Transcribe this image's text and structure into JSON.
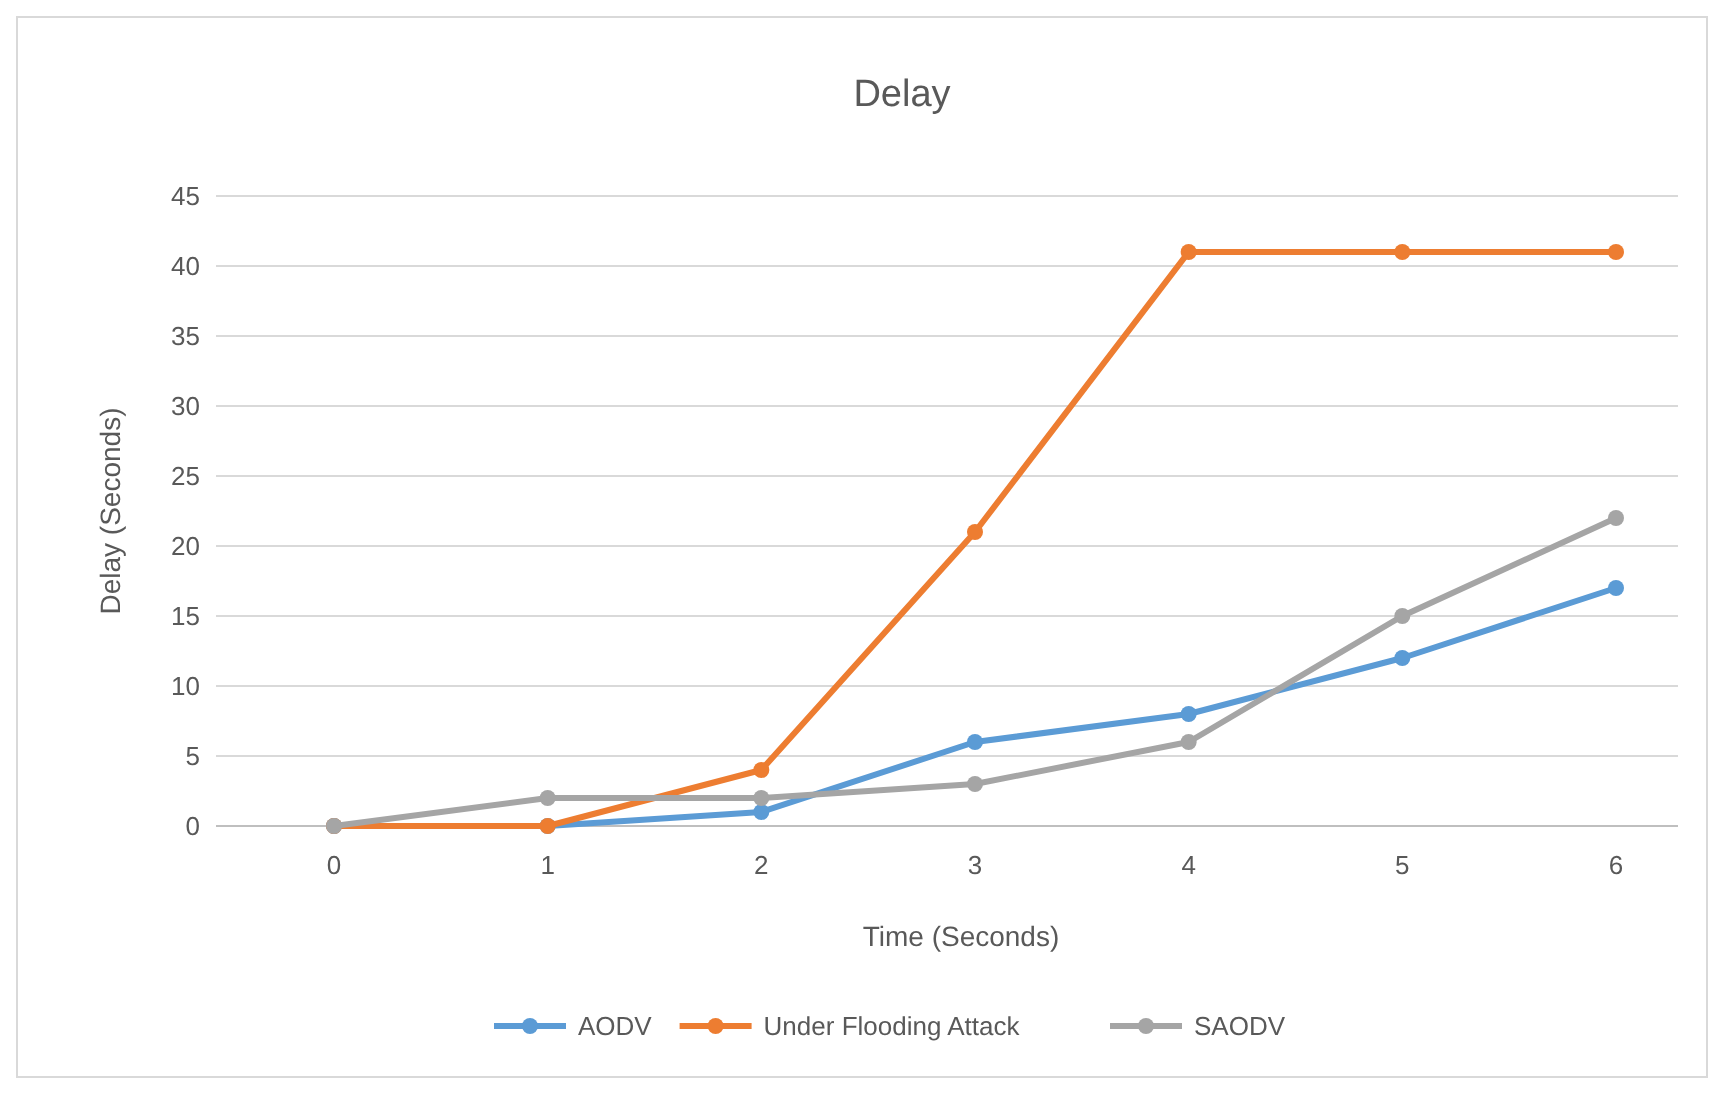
{
  "chart_data": {
    "type": "line",
    "title": "Delay",
    "xlabel": "Time (Seconds)",
    "ylabel": "Delay (Seconds)",
    "categories": [
      "0",
      "1",
      "2",
      "3",
      "4",
      "5",
      "6"
    ],
    "series": [
      {
        "name": "AODV",
        "color": "#5b9bd5",
        "values": [
          0,
          0,
          1,
          6,
          8,
          12,
          17
        ]
      },
      {
        "name": "Under Flooding Attack",
        "color": "#ed7d31",
        "values": [
          0,
          0,
          4,
          21,
          41,
          41,
          41
        ]
      },
      {
        "name": "SAODV",
        "color": "#a5a5a5",
        "values": [
          0,
          2,
          2,
          3,
          6,
          15,
          22
        ]
      }
    ],
    "ylim": [
      0,
      45
    ],
    "yticks": [
      0,
      5,
      10,
      15,
      20,
      25,
      30,
      35,
      40,
      45
    ],
    "grid": "y",
    "legend": "bottom",
    "marker": "circle",
    "line_style": "solid"
  }
}
